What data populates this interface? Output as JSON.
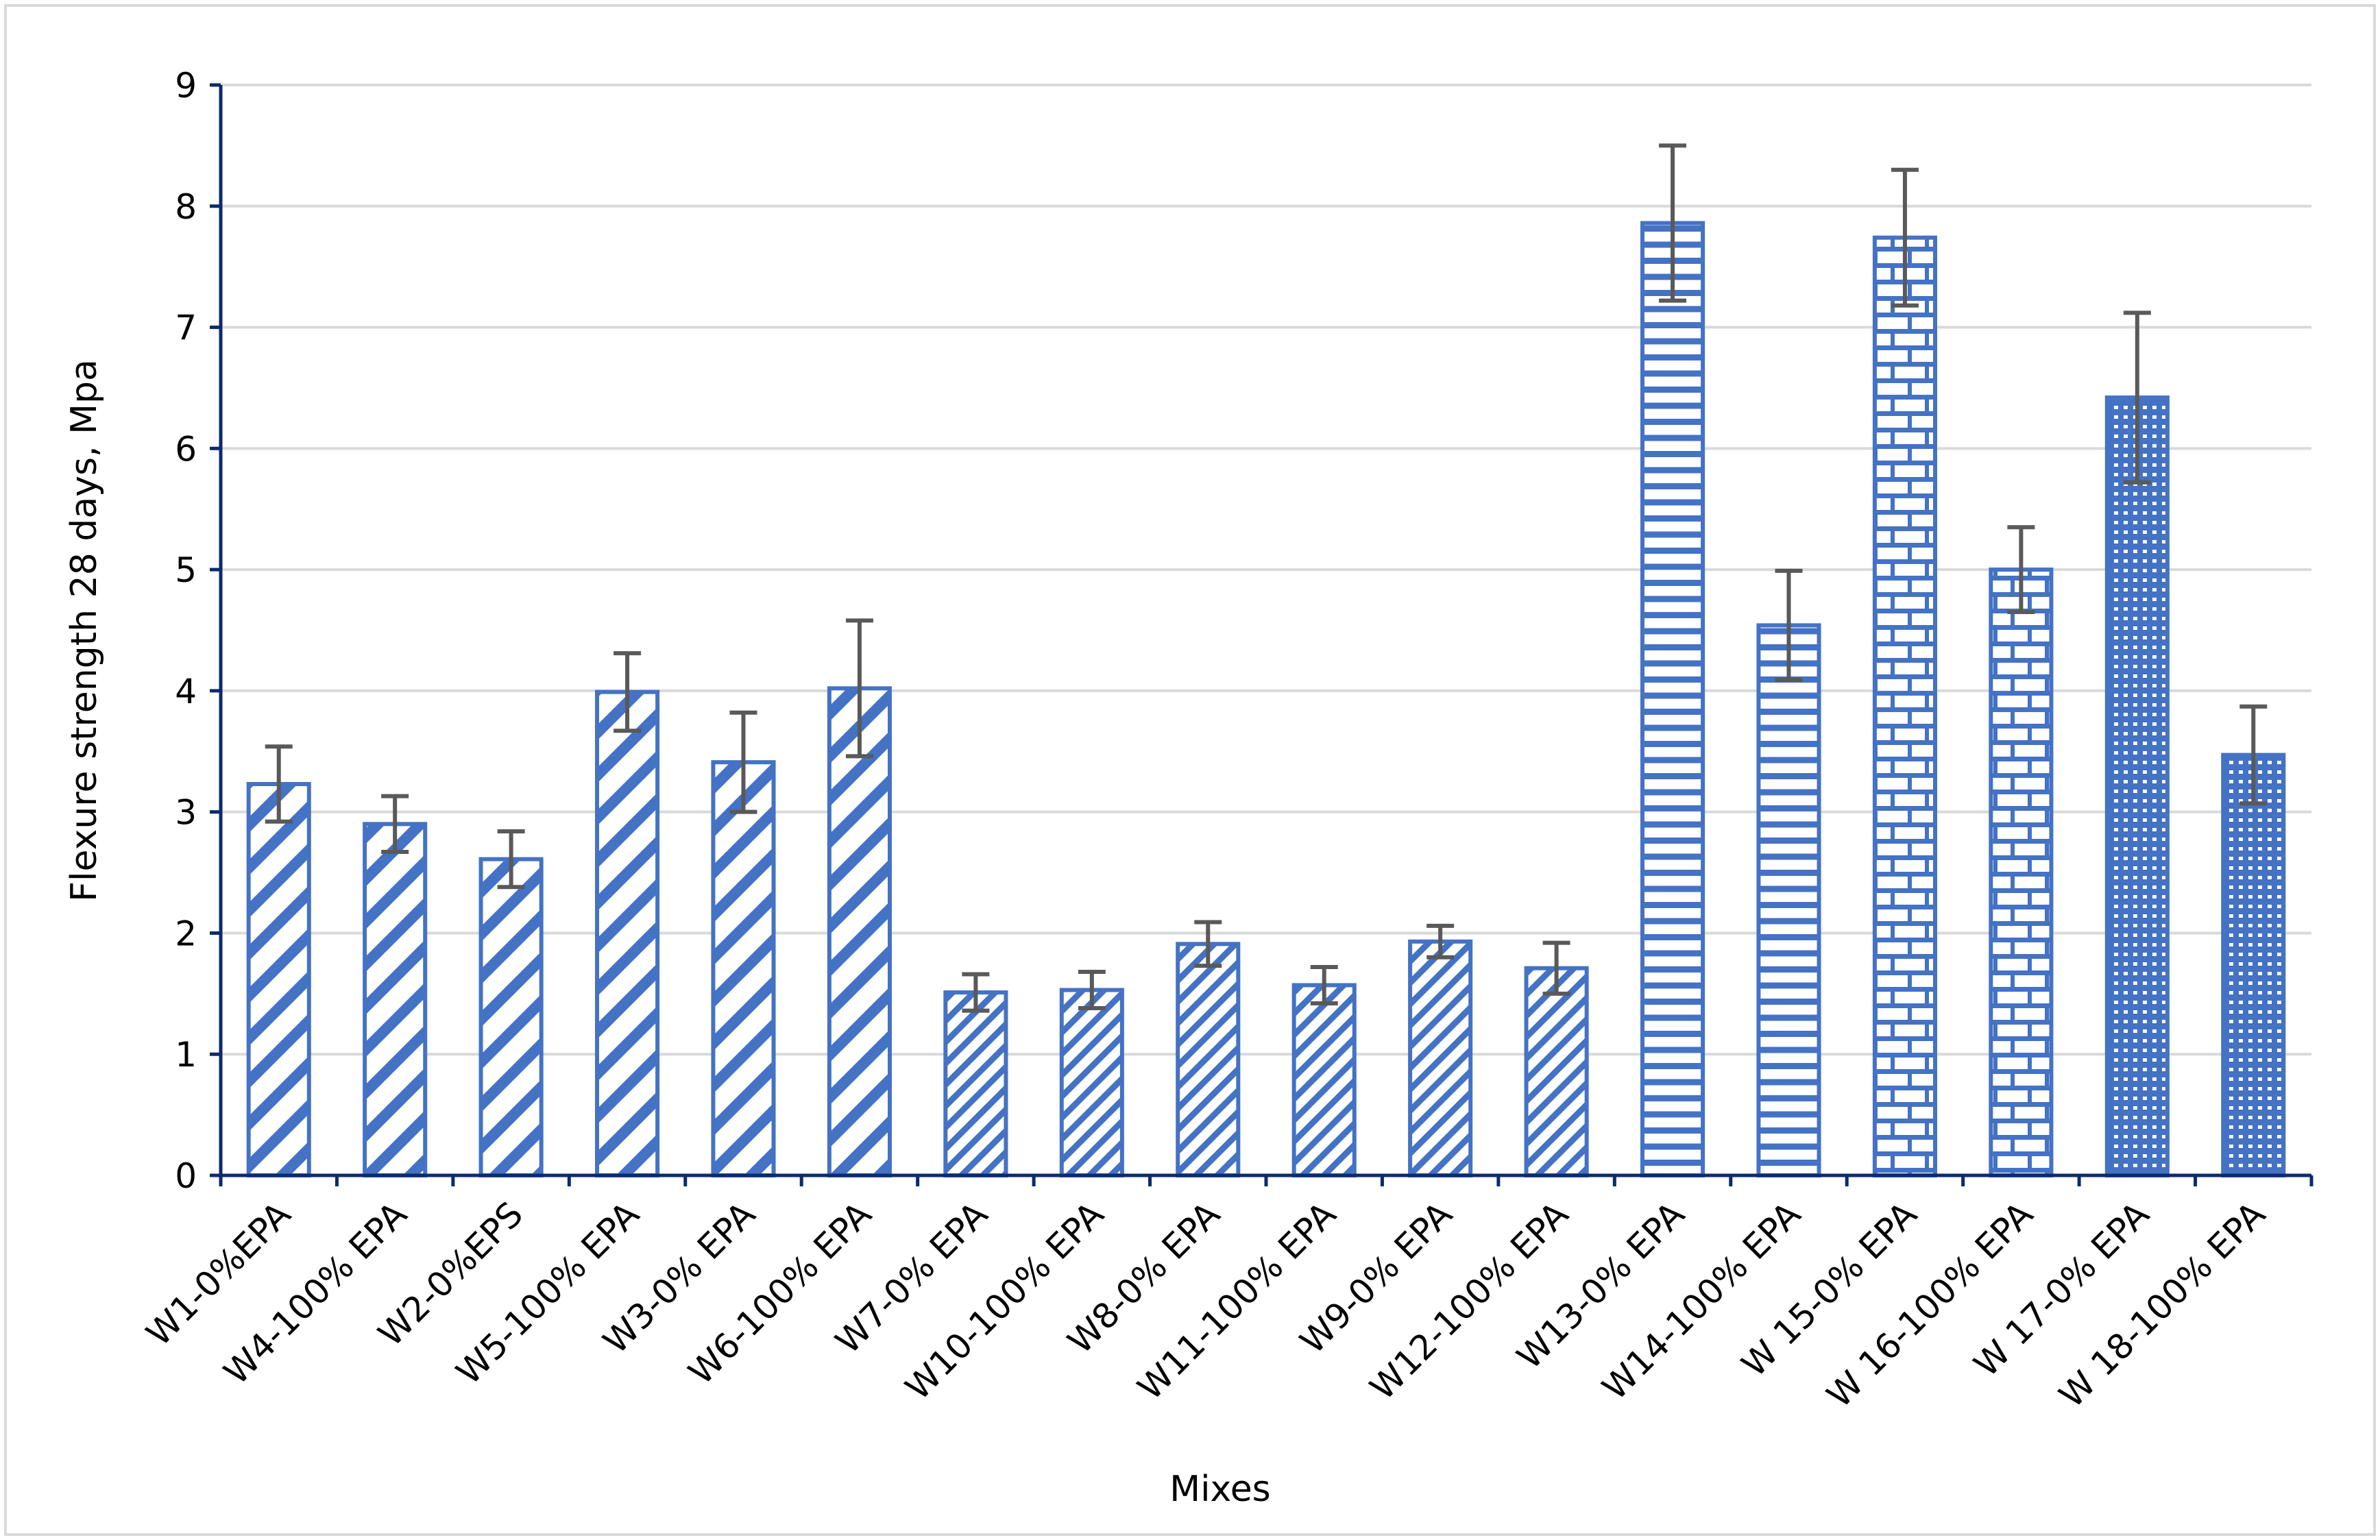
{
  "chart_data": {
    "type": "bar",
    "title": "",
    "xlabel": "Mixes",
    "ylabel": "Flexure strength 28 days, Mpa",
    "ylim": [
      0,
      9
    ],
    "yticks": [
      "0",
      "1",
      "2",
      "3",
      "4",
      "5",
      "6",
      "7",
      "8",
      "9"
    ],
    "grid": true,
    "legend": "none",
    "bar_color": "#4472C4",
    "error_bar_color": "#595959",
    "axis_color": "#0D2A6B",
    "categories": [
      "W1-0%EPA",
      "W4-100% EPA",
      "W2-0%EPS",
      "W5-100% EPA",
      "W3-0% EPA",
      "W6-100% EPA",
      "W7-0% EPA",
      "W10-100% EPA",
      "W8-0% EPA",
      "W11-100% EPA",
      "W9-0% EPA",
      "W12-100% EPA",
      "W13-0% EPA",
      "W14-100% EPA",
      "W 15-0% EPA",
      "W 16-100% EPA",
      "W 17-0% EPA",
      "W 18-100% EPA"
    ],
    "values": [
      3.23,
      2.9,
      2.61,
      3.99,
      3.41,
      4.02,
      1.51,
      1.53,
      1.91,
      1.57,
      1.93,
      1.71,
      7.86,
      4.54,
      7.74,
      5.0,
      6.42,
      3.47
    ],
    "error": [
      0.31,
      0.23,
      0.23,
      0.32,
      0.41,
      0.56,
      0.15,
      0.15,
      0.18,
      0.15,
      0.13,
      0.21,
      0.64,
      0.45,
      0.56,
      0.35,
      0.7,
      0.4
    ],
    "patterns": [
      "wide-diagonal",
      "wide-diagonal",
      "wide-diagonal",
      "wide-diagonal",
      "wide-diagonal",
      "wide-diagonal",
      "narrow-diagonal",
      "narrow-diagonal",
      "narrow-diagonal",
      "narrow-diagonal",
      "narrow-diagonal",
      "narrow-diagonal",
      "horizontal",
      "horizontal",
      "brick",
      "brick",
      "dotted-grid",
      "dotted-grid"
    ]
  }
}
